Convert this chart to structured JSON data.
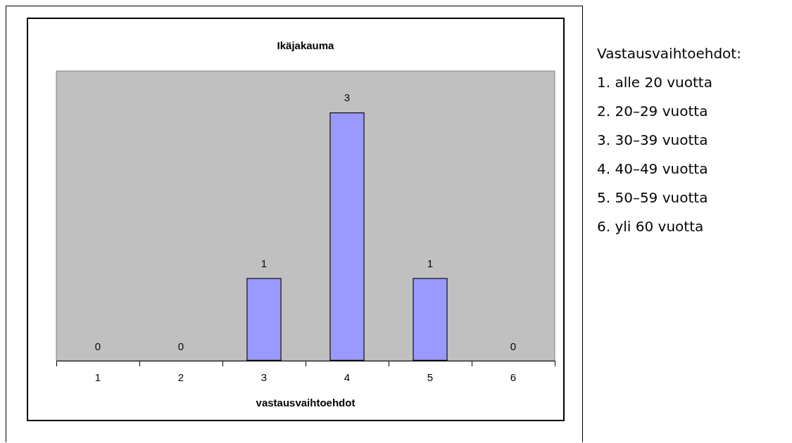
{
  "chart_data": {
    "type": "bar",
    "title": "Ikäjakauma",
    "xlabel": "vastausvaihtoehdot",
    "categories": [
      "1",
      "2",
      "3",
      "4",
      "5",
      "6"
    ],
    "values": [
      0,
      0,
      1,
      3,
      1,
      0
    ],
    "color": "#9999ff",
    "data_labels": true,
    "grid": false,
    "legend": false,
    "annotations": [
      "Vastausvaihtoehdot:",
      "1. alle 20 vuotta",
      "2. 20–29 vuotta",
      "3. 30–39 vuotta",
      "4. 40–49 vuotta",
      "5. 50–59 vuotta",
      "6. yli 60 vuotta"
    ]
  }
}
